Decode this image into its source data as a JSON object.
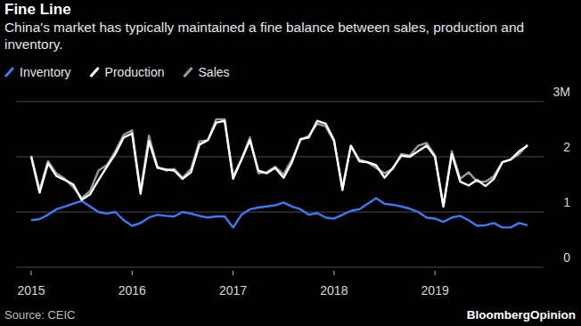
{
  "chart_data": {
    "type": "line",
    "title": "Fine Line",
    "subtitle": "China's market has typically maintained a fine balance between sales, production and inventory.",
    "source": "Source: CEIC",
    "branding": "BloombergOpinion",
    "categories": [
      "2015",
      null,
      null,
      null,
      null,
      null,
      null,
      null,
      null,
      null,
      null,
      null,
      "2016",
      null,
      null,
      null,
      null,
      null,
      null,
      null,
      null,
      null,
      null,
      null,
      "2017",
      null,
      null,
      null,
      null,
      null,
      null,
      null,
      null,
      null,
      null,
      null,
      "2018",
      null,
      null,
      null,
      null,
      null,
      null,
      null,
      null,
      null,
      null,
      null,
      "2019",
      null,
      null,
      null,
      null,
      null,
      null,
      null,
      null,
      null,
      null,
      null
    ],
    "series": [
      {
        "name": "Inventory",
        "color": "#3d7bf0",
        "values": [
          0.85,
          0.87,
          0.95,
          1.05,
          1.1,
          1.15,
          1.2,
          1.1,
          1.0,
          0.97,
          1.0,
          0.85,
          0.75,
          0.8,
          0.9,
          0.95,
          0.93,
          0.92,
          1.0,
          0.97,
          0.93,
          0.9,
          0.92,
          0.92,
          0.72,
          0.95,
          1.05,
          1.08,
          1.1,
          1.12,
          1.17,
          1.1,
          1.05,
          0.95,
          0.98,
          0.9,
          0.88,
          0.95,
          1.02,
          1.05,
          1.15,
          1.25,
          1.15,
          1.13,
          1.1,
          1.06,
          1.0,
          0.9,
          0.88,
          0.82,
          0.9,
          0.93,
          0.85,
          0.75,
          0.76,
          0.8,
          0.72,
          0.72,
          0.8,
          0.76
        ]
      },
      {
        "name": "Production",
        "color": "#ffffff",
        "values": [
          2.0,
          1.35,
          1.88,
          1.65,
          1.58,
          1.5,
          1.22,
          1.32,
          1.58,
          1.82,
          2.05,
          2.35,
          2.42,
          1.33,
          2.28,
          1.8,
          1.77,
          1.75,
          1.6,
          1.72,
          2.22,
          2.3,
          2.62,
          2.65,
          1.6,
          1.95,
          2.3,
          1.75,
          1.7,
          1.8,
          1.62,
          1.9,
          2.32,
          2.35,
          2.65,
          2.6,
          2.3,
          1.4,
          2.2,
          1.92,
          1.9,
          1.85,
          1.62,
          1.8,
          2.02,
          2.0,
          2.1,
          2.2,
          2.0,
          1.1,
          2.05,
          1.55,
          1.48,
          1.58,
          1.47,
          1.6,
          1.9,
          1.95,
          2.1,
          2.2
        ]
      },
      {
        "name": "Sales",
        "color": "#9a9a9a",
        "values": [
          2.02,
          1.4,
          1.92,
          1.7,
          1.6,
          1.45,
          1.25,
          1.38,
          1.75,
          1.85,
          2.1,
          2.4,
          2.48,
          1.38,
          2.38,
          1.82,
          1.75,
          1.78,
          1.62,
          1.78,
          2.28,
          2.3,
          2.68,
          2.68,
          1.65,
          1.95,
          2.35,
          1.7,
          1.72,
          1.82,
          1.68,
          1.95,
          2.3,
          2.38,
          2.6,
          2.55,
          2.28,
          1.45,
          2.2,
          1.95,
          1.9,
          1.8,
          1.7,
          1.78,
          2.05,
          2.02,
          2.2,
          2.25,
          2.02,
          1.1,
          2.1,
          1.6,
          1.72,
          1.55,
          1.55,
          1.65,
          1.9,
          1.95,
          2.05,
          2.22
        ]
      }
    ],
    "ylim": [
      0,
      3
    ],
    "yticks": [
      0,
      1,
      2,
      {
        "value": 3,
        "label": "3M"
      }
    ],
    "grid": true,
    "legend": "top"
  }
}
